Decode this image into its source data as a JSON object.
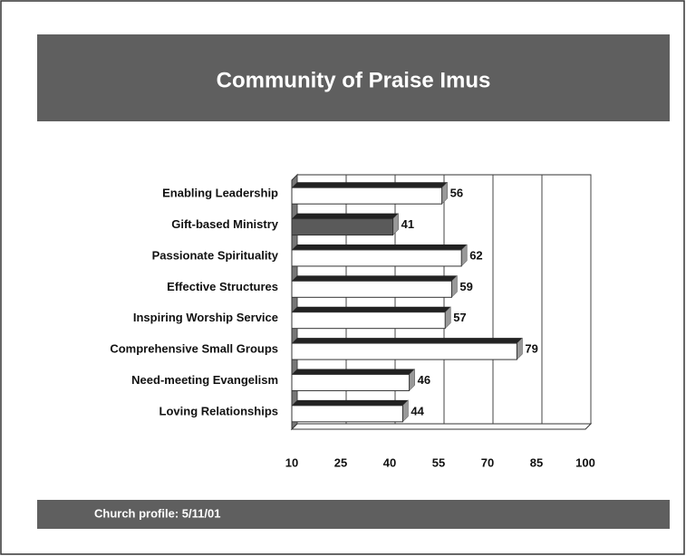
{
  "chart_data": {
    "type": "bar",
    "orientation": "horizontal",
    "title": "Community of Praise Imus",
    "footer": "Church profile: 5/11/01",
    "categories": [
      "Enabling Leadership",
      "Gift-based Ministry",
      "Passionate Spirituality",
      "Effective Structures",
      "Inspiring Worship Service",
      "Comprehensive Small Groups",
      "Need-meeting Evangelism",
      "Loving Relationships"
    ],
    "values": [
      56,
      41,
      62,
      59,
      57,
      79,
      46,
      44
    ],
    "colors": [
      "#ffffff",
      "#5a5a5a",
      "#ffffff",
      "#ffffff",
      "#ffffff",
      "#ffffff",
      "#ffffff",
      "#ffffff"
    ],
    "xlim": [
      10,
      100
    ],
    "xticks": [
      10,
      25,
      40,
      55,
      70,
      85,
      100
    ],
    "grid": true
  }
}
